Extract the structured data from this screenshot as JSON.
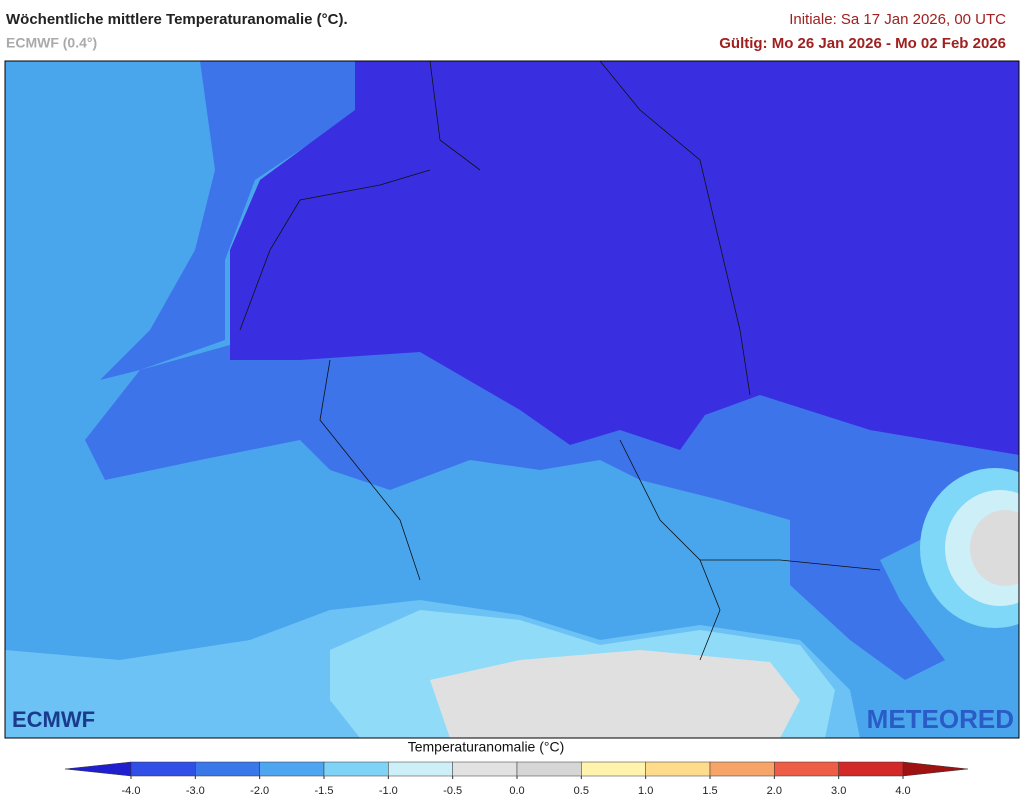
{
  "header": {
    "title": "Wöchentliche mittlere Temperaturanomalie (°C).",
    "subtitle": "ECMWF (0.4°)",
    "init": "Initiale: Sa 17 Jan 2026, 00 UTC",
    "valid": "Gültig: Mo 26 Jan 2026 - Mo 02 Feb 2026"
  },
  "logos": {
    "left": "ECMWF",
    "right": "METEORED"
  },
  "colorbar": {
    "title": "Temperaturanomalie (°C)",
    "ticks": [
      {
        "value": -4,
        "label": "-4.0"
      },
      {
        "value": -3,
        "label": "-3.0"
      },
      {
        "value": -2,
        "label": "-2.0"
      },
      {
        "value": -1.5,
        "label": "-1.5"
      },
      {
        "value": -1,
        "label": "-1.0"
      },
      {
        "value": -0.5,
        "label": "-0.5"
      },
      {
        "value": 0,
        "label": "0.0"
      },
      {
        "value": 0.5,
        "label": "0.5"
      },
      {
        "value": 1,
        "label": "1.0"
      },
      {
        "value": 1.5,
        "label": "1.5"
      },
      {
        "value": 2,
        "label": "2.0"
      },
      {
        "value": 3,
        "label": "3.0"
      },
      {
        "value": 4,
        "label": "4.0"
      }
    ],
    "colors": [
      "#2f4fe6",
      "#3a78ea",
      "#4ea6f0",
      "#7fd3f7",
      "#cdeff8",
      "#e2e2e2",
      "#d6d6d6",
      "#fff3ad",
      "#ffdc8c",
      "#f6a468",
      "#ee5e46",
      "#d22828"
    ],
    "under_color": "#1f1fd0",
    "over_color": "#9e1212"
  }
}
